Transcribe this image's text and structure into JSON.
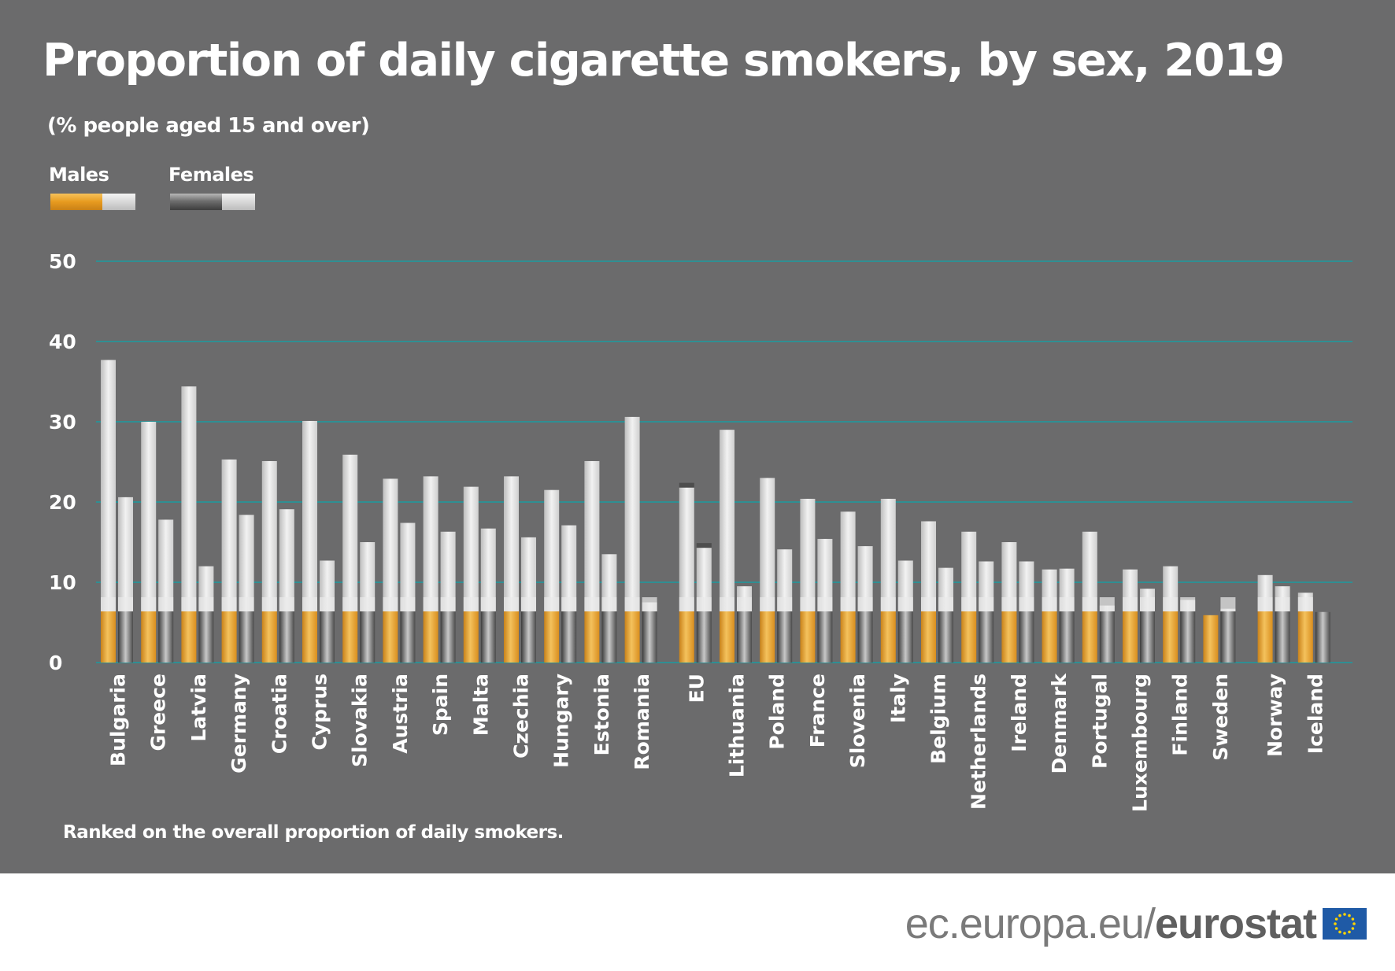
{
  "title": "Proportion of daily cigarette smokers, by sex, 2019",
  "subtitle": "(% people aged 15 and over)",
  "footnote": "Ranked on the overall proportion of daily smokers.",
  "brand": {
    "site": "ec.europa.eu/",
    "name": "eurostat"
  },
  "colors": {
    "panel": "#6b6b6c",
    "gridline": "#2f8f93",
    "male_filter": "#e8a22e",
    "female_filter": "#8c8c8c",
    "paper": "#dcdcdc"
  },
  "chart_data": {
    "type": "bar",
    "title": "Proportion of daily cigarette smokers, by sex, 2019",
    "subtitle": "(% people aged 15 and over)",
    "xlabel": "",
    "ylabel": "",
    "ylim": [
      0,
      50
    ],
    "yticks": [
      0,
      10,
      20,
      30,
      40,
      50
    ],
    "grid": true,
    "legend_position": "top-left",
    "categories": [
      "Bulgaria",
      "Greece",
      "Latvia",
      "Germany",
      "Croatia",
      "Cyprus",
      "Slovakia",
      "Austria",
      "Spain",
      "Malta",
      "Czechia",
      "Hungary",
      "Estonia",
      "Romania",
      "EU",
      "Lithuania",
      "Poland",
      "France",
      "Slovenia",
      "Italy",
      "Belgium",
      "Netherlands",
      "Ireland",
      "Denmark",
      "Portugal",
      "Luxembourg",
      "Finland",
      "Sweden",
      "Norway",
      "Iceland"
    ],
    "series": [
      {
        "name": "Males",
        "values": [
          37.7,
          30.0,
          34.4,
          25.3,
          25.1,
          30.1,
          25.9,
          22.9,
          23.2,
          21.9,
          23.2,
          21.5,
          25.1,
          30.6,
          21.8,
          29.0,
          23.0,
          20.4,
          18.8,
          20.4,
          17.6,
          16.3,
          15.0,
          11.6,
          16.3,
          11.6,
          12.0,
          5.9,
          10.9,
          8.7
        ]
      },
      {
        "name": "Females",
        "values": [
          20.6,
          17.8,
          12.0,
          18.4,
          19.1,
          12.7,
          15.0,
          17.4,
          16.3,
          16.7,
          15.6,
          17.1,
          13.5,
          7.5,
          14.3,
          9.5,
          14.1,
          15.4,
          14.5,
          12.7,
          11.8,
          12.6,
          12.6,
          11.7,
          7.1,
          9.2,
          7.8,
          6.7,
          9.5,
          6.3
        ]
      }
    ]
  }
}
